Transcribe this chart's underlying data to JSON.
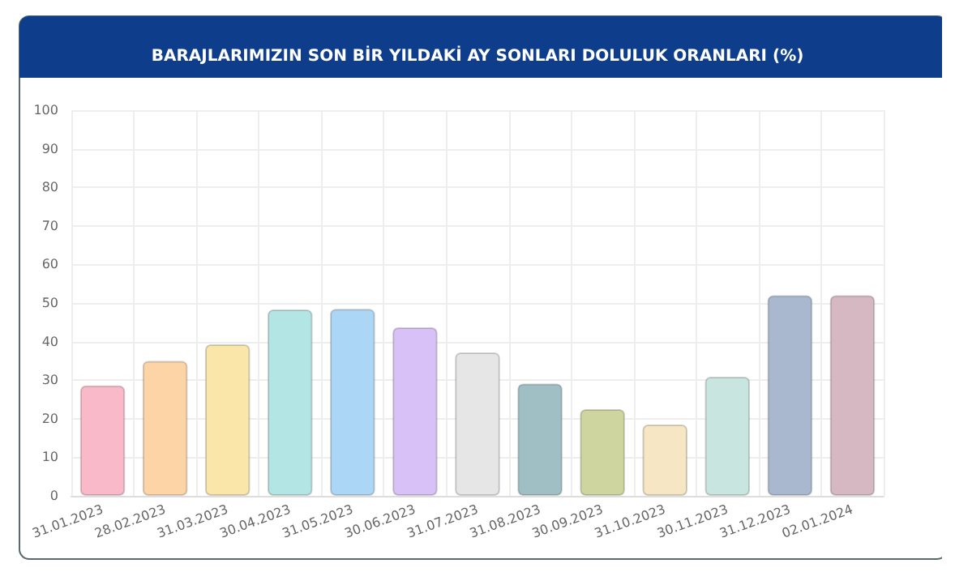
{
  "chart_data": {
    "type": "bar",
    "title": "BARAJLARIMIZIN SON BİR YILDAKİ AY SONLARI DOLULUK ORANLARI (%)",
    "categories": [
      "31.01.2023",
      "28.02.2023",
      "31.03.2023",
      "30.04.2023",
      "31.05.2023",
      "30.06.2023",
      "31.07.2023",
      "31.08.2023",
      "30.09.2023",
      "31.10.2023",
      "30.11.2023",
      "31.12.2023",
      "02.01.2024"
    ],
    "values": [
      28.6,
      35.0,
      39.3,
      48.3,
      48.5,
      43.7,
      37.2,
      29.1,
      22.5,
      18.5,
      30.9,
      52.0,
      52.0
    ],
    "colors": [
      "#f9b9c8",
      "#fcd4a6",
      "#fbe6a9",
      "#b2e5e3",
      "#acd6f5",
      "#d7c1f6",
      "#e6e6e6",
      "#9fbfc4",
      "#ced59f",
      "#f6e6c3",
      "#c8e6df",
      "#a9b8cf",
      "#d6b8c2"
    ],
    "ylim": [
      0,
      100
    ],
    "yticks": [
      0,
      10,
      20,
      30,
      40,
      50,
      60,
      70,
      80,
      90,
      100
    ],
    "grid": true
  }
}
